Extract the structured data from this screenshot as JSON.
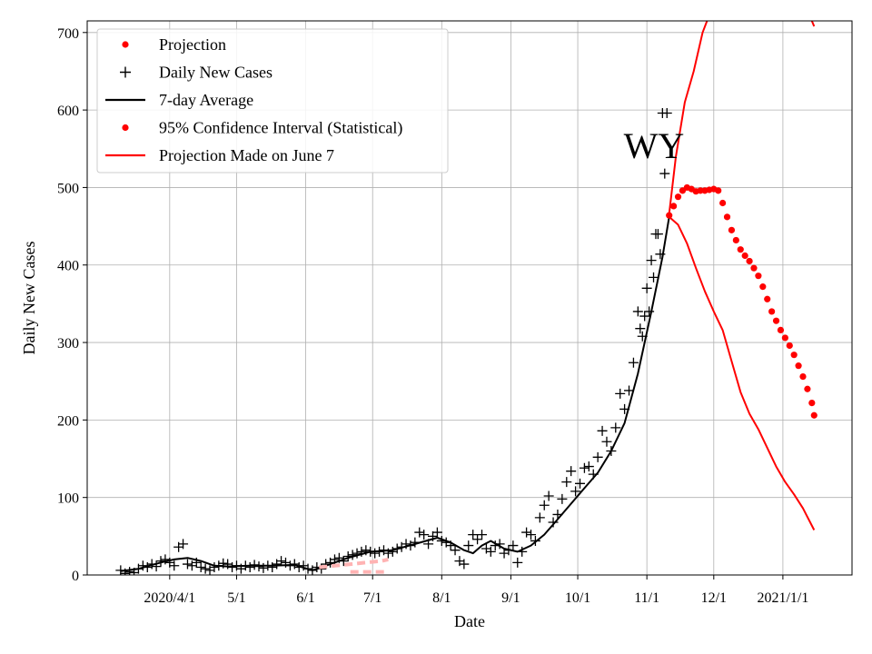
{
  "chart_data": {
    "type": "line",
    "title": "WY",
    "xlabel": "Date",
    "ylabel": "Daily New Cases",
    "xlim": [
      "2020-02-24",
      "2021-02-01"
    ],
    "ylim": [
      0,
      715
    ],
    "grid": true,
    "legend_position": "top-left",
    "x_ticks": [
      {
        "date": "2020-04-01",
        "label": "2020/4/1"
      },
      {
        "date": "2020-05-01",
        "label": "5/1"
      },
      {
        "date": "2020-06-01",
        "label": "6/1"
      },
      {
        "date": "2020-07-01",
        "label": "7/1"
      },
      {
        "date": "2020-08-01",
        "label": "8/1"
      },
      {
        "date": "2020-09-01",
        "label": "9/1"
      },
      {
        "date": "2020-10-01",
        "label": "10/1"
      },
      {
        "date": "2020-11-01",
        "label": "11/1"
      },
      {
        "date": "2020-12-01",
        "label": "12/1"
      },
      {
        "date": "2021-01-01",
        "label": "2021/1/1"
      }
    ],
    "y_ticks": [
      0,
      100,
      200,
      300,
      400,
      500,
      600,
      700
    ],
    "legend": [
      {
        "label": "Projection",
        "marker": "dot",
        "color": "#ff0000"
      },
      {
        "label": "Daily New Cases",
        "marker": "plus",
        "color": "#000000"
      },
      {
        "label": "7-day Average",
        "marker": "line",
        "color": "#000000"
      },
      {
        "label": "95% Confidence Interval (Statistical)",
        "marker": "dot",
        "color": "#ff0000"
      },
      {
        "label": "Projection Made on June 7",
        "marker": "line",
        "color": "#ff0000"
      }
    ],
    "series": [
      {
        "name": "Daily New Cases",
        "style": "plus",
        "color": "#000000",
        "points": [
          [
            "2020-03-10",
            6
          ],
          [
            "2020-03-12",
            2
          ],
          [
            "2020-03-14",
            4
          ],
          [
            "2020-03-16",
            3
          ],
          [
            "2020-03-18",
            8
          ],
          [
            "2020-03-20",
            12
          ],
          [
            "2020-03-22",
            10
          ],
          [
            "2020-03-24",
            14
          ],
          [
            "2020-03-26",
            11
          ],
          [
            "2020-03-28",
            18
          ],
          [
            "2020-03-30",
            20
          ],
          [
            "2020-04-01",
            16
          ],
          [
            "2020-04-03",
            12
          ],
          [
            "2020-04-05",
            36
          ],
          [
            "2020-04-07",
            40
          ],
          [
            "2020-04-09",
            14
          ],
          [
            "2020-04-11",
            12
          ],
          [
            "2020-04-13",
            16
          ],
          [
            "2020-04-15",
            10
          ],
          [
            "2020-04-17",
            8
          ],
          [
            "2020-04-19",
            6
          ],
          [
            "2020-04-21",
            10
          ],
          [
            "2020-04-23",
            12
          ],
          [
            "2020-04-25",
            15
          ],
          [
            "2020-04-27",
            14
          ],
          [
            "2020-04-29",
            10
          ],
          [
            "2020-05-01",
            12
          ],
          [
            "2020-05-03",
            8
          ],
          [
            "2020-05-05",
            12
          ],
          [
            "2020-05-07",
            10
          ],
          [
            "2020-05-09",
            13
          ],
          [
            "2020-05-11",
            11
          ],
          [
            "2020-05-13",
            9
          ],
          [
            "2020-05-15",
            12
          ],
          [
            "2020-05-17",
            10
          ],
          [
            "2020-05-19",
            14
          ],
          [
            "2020-05-21",
            18
          ],
          [
            "2020-05-23",
            16
          ],
          [
            "2020-05-25",
            12
          ],
          [
            "2020-05-27",
            14
          ],
          [
            "2020-05-29",
            10
          ],
          [
            "2020-05-31",
            12
          ],
          [
            "2020-06-02",
            8
          ],
          [
            "2020-06-04",
            6
          ],
          [
            "2020-06-06",
            10
          ],
          [
            "2020-06-08",
            8
          ],
          [
            "2020-06-10",
            14
          ],
          [
            "2020-06-12",
            16
          ],
          [
            "2020-06-14",
            20
          ],
          [
            "2020-06-16",
            22
          ],
          [
            "2020-06-18",
            18
          ],
          [
            "2020-06-20",
            24
          ],
          [
            "2020-06-22",
            26
          ],
          [
            "2020-06-24",
            28
          ],
          [
            "2020-06-26",
            30
          ],
          [
            "2020-06-28",
            32
          ],
          [
            "2020-06-30",
            30
          ],
          [
            "2020-07-02",
            28
          ],
          [
            "2020-07-04",
            30
          ],
          [
            "2020-07-06",
            32
          ],
          [
            "2020-07-08",
            28
          ],
          [
            "2020-07-10",
            30
          ],
          [
            "2020-07-12",
            34
          ],
          [
            "2020-07-14",
            36
          ],
          [
            "2020-07-16",
            40
          ],
          [
            "2020-07-18",
            38
          ],
          [
            "2020-07-20",
            42
          ],
          [
            "2020-07-22",
            55
          ],
          [
            "2020-07-24",
            52
          ],
          [
            "2020-07-26",
            40
          ],
          [
            "2020-07-28",
            50
          ],
          [
            "2020-07-30",
            55
          ],
          [
            "2020-08-01",
            44
          ],
          [
            "2020-08-03",
            42
          ],
          [
            "2020-08-05",
            38
          ],
          [
            "2020-08-07",
            32
          ],
          [
            "2020-08-09",
            18
          ],
          [
            "2020-08-11",
            14
          ],
          [
            "2020-08-13",
            38
          ],
          [
            "2020-08-15",
            52
          ],
          [
            "2020-08-17",
            46
          ],
          [
            "2020-08-19",
            52
          ],
          [
            "2020-08-21",
            34
          ],
          [
            "2020-08-23",
            30
          ],
          [
            "2020-08-25",
            38
          ],
          [
            "2020-08-27",
            40
          ],
          [
            "2020-08-29",
            28
          ],
          [
            "2020-08-31",
            32
          ],
          [
            "2020-09-02",
            38
          ],
          [
            "2020-09-04",
            16
          ],
          [
            "2020-09-06",
            30
          ],
          [
            "2020-09-08",
            55
          ],
          [
            "2020-09-10",
            52
          ],
          [
            "2020-09-12",
            44
          ],
          [
            "2020-09-14",
            74
          ],
          [
            "2020-09-16",
            90
          ],
          [
            "2020-09-18",
            102
          ],
          [
            "2020-09-20",
            68
          ],
          [
            "2020-09-22",
            78
          ],
          [
            "2020-09-24",
            98
          ],
          [
            "2020-09-26",
            120
          ],
          [
            "2020-09-28",
            134
          ],
          [
            "2020-09-30",
            108
          ],
          [
            "2020-10-02",
            118
          ],
          [
            "2020-10-04",
            138
          ],
          [
            "2020-10-06",
            140
          ],
          [
            "2020-10-08",
            130
          ],
          [
            "2020-10-10",
            152
          ],
          [
            "2020-10-12",
            186
          ],
          [
            "2020-10-14",
            172
          ],
          [
            "2020-10-16",
            160
          ],
          [
            "2020-10-18",
            190
          ],
          [
            "2020-10-20",
            234
          ],
          [
            "2020-10-22",
            214
          ],
          [
            "2020-10-24",
            238
          ],
          [
            "2020-10-26",
            274
          ],
          [
            "2020-10-28",
            340
          ],
          [
            "2020-10-29",
            318
          ],
          [
            "2020-10-30",
            308
          ],
          [
            "2020-10-31",
            334
          ],
          [
            "2020-11-01",
            370
          ],
          [
            "2020-11-02",
            340
          ],
          [
            "2020-11-03",
            406
          ],
          [
            "2020-11-04",
            384
          ],
          [
            "2020-11-05",
            440
          ],
          [
            "2020-11-06",
            440
          ],
          [
            "2020-11-07",
            414
          ],
          [
            "2020-11-08",
            596
          ],
          [
            "2020-11-09",
            518
          ],
          [
            "2020-11-10",
            596
          ]
        ]
      },
      {
        "name": "7-day Average",
        "style": "line",
        "color": "#000000",
        "points": [
          [
            "2020-03-10",
            5
          ],
          [
            "2020-03-18",
            8
          ],
          [
            "2020-03-28",
            16
          ],
          [
            "2020-04-03",
            20
          ],
          [
            "2020-04-09",
            22
          ],
          [
            "2020-04-15",
            18
          ],
          [
            "2020-04-21",
            12
          ],
          [
            "2020-04-27",
            11
          ],
          [
            "2020-05-07",
            12
          ],
          [
            "2020-05-17",
            12
          ],
          [
            "2020-05-27",
            13
          ],
          [
            "2020-06-04",
            6
          ],
          [
            "2020-06-10",
            12
          ],
          [
            "2020-06-20",
            22
          ],
          [
            "2020-06-30",
            30
          ],
          [
            "2020-07-10",
            32
          ],
          [
            "2020-07-20",
            40
          ],
          [
            "2020-07-30",
            48
          ],
          [
            "2020-08-05",
            42
          ],
          [
            "2020-08-11",
            32
          ],
          [
            "2020-08-15",
            28
          ],
          [
            "2020-08-19",
            38
          ],
          [
            "2020-08-23",
            44
          ],
          [
            "2020-08-29",
            34
          ],
          [
            "2020-09-04",
            30
          ],
          [
            "2020-09-10",
            38
          ],
          [
            "2020-09-16",
            52
          ],
          [
            "2020-09-22",
            72
          ],
          [
            "2020-09-28",
            92
          ],
          [
            "2020-10-04",
            112
          ],
          [
            "2020-10-10",
            132
          ],
          [
            "2020-10-16",
            160
          ],
          [
            "2020-10-22",
            196
          ],
          [
            "2020-10-28",
            260
          ],
          [
            "2020-11-03",
            340
          ],
          [
            "2020-11-08",
            410
          ],
          [
            "2020-11-11",
            462
          ]
        ]
      },
      {
        "name": "Projection",
        "style": "dot",
        "color": "#ff0000",
        "points": [
          [
            "2020-11-11",
            464
          ],
          [
            "2020-11-13",
            476
          ],
          [
            "2020-11-15",
            488
          ],
          [
            "2020-11-17",
            496
          ],
          [
            "2020-11-19",
            500
          ],
          [
            "2020-11-21",
            498
          ],
          [
            "2020-11-23",
            495
          ],
          [
            "2020-11-25",
            496
          ],
          [
            "2020-11-27",
            496
          ],
          [
            "2020-11-29",
            497
          ],
          [
            "2020-12-01",
            498
          ],
          [
            "2020-12-03",
            496
          ],
          [
            "2020-12-05",
            480
          ],
          [
            "2020-12-07",
            462
          ],
          [
            "2020-12-09",
            445
          ],
          [
            "2020-12-11",
            432
          ],
          [
            "2020-12-13",
            420
          ],
          [
            "2020-12-15",
            412
          ],
          [
            "2020-12-17",
            405
          ],
          [
            "2020-12-19",
            396
          ],
          [
            "2020-12-21",
            386
          ],
          [
            "2020-12-23",
            372
          ],
          [
            "2020-12-25",
            356
          ],
          [
            "2020-12-27",
            340
          ],
          [
            "2020-12-29",
            328
          ],
          [
            "2020-12-31",
            316
          ],
          [
            "2021-01-02",
            306
          ],
          [
            "2021-01-04",
            296
          ],
          [
            "2021-01-06",
            284
          ],
          [
            "2021-01-08",
            270
          ],
          [
            "2021-01-10",
            256
          ],
          [
            "2021-01-12",
            240
          ],
          [
            "2021-01-14",
            222
          ],
          [
            "2021-01-15",
            206
          ]
        ]
      },
      {
        "name": "95% Confidence Interval (Statistical) — upper",
        "style": "line",
        "color": "#ff0000",
        "points": [
          [
            "2020-11-11",
            466
          ],
          [
            "2020-11-14",
            540
          ],
          [
            "2020-11-18",
            610
          ],
          [
            "2020-11-22",
            650
          ],
          [
            "2020-11-26",
            700
          ],
          [
            "2020-11-28",
            715
          ]
        ]
      },
      {
        "name": "95% Confidence Interval (Statistical) — upper (tail)",
        "style": "line",
        "color": "#ff0000",
        "points": [
          [
            "2021-01-14",
            715
          ],
          [
            "2021-01-15",
            708
          ]
        ]
      },
      {
        "name": "95% Confidence Interval (Statistical) — lower",
        "style": "line",
        "color": "#ff0000",
        "points": [
          [
            "2020-11-11",
            462
          ],
          [
            "2020-11-15",
            452
          ],
          [
            "2020-11-19",
            428
          ],
          [
            "2020-11-23",
            396
          ],
          [
            "2020-11-27",
            366
          ],
          [
            "2020-12-01",
            340
          ],
          [
            "2020-12-05",
            316
          ],
          [
            "2020-12-09",
            276
          ],
          [
            "2020-12-13",
            236
          ],
          [
            "2020-12-17",
            208
          ],
          [
            "2020-12-21",
            188
          ],
          [
            "2020-12-25",
            164
          ],
          [
            "2020-12-29",
            140
          ],
          [
            "2021-01-02",
            120
          ],
          [
            "2021-01-06",
            104
          ],
          [
            "2021-01-10",
            86
          ],
          [
            "2021-01-15",
            58
          ]
        ]
      },
      {
        "name": "Projection Made on June 7",
        "style": "dashed",
        "color": "#ffb3b3",
        "points": [
          [
            "2020-06-07",
            10
          ],
          [
            "2020-06-14",
            12
          ],
          [
            "2020-06-21",
            14
          ],
          [
            "2020-06-28",
            16
          ],
          [
            "2020-07-05",
            18
          ],
          [
            "2020-07-08",
            20
          ]
        ]
      },
      {
        "name": "Projection Made on June 7 — lower",
        "style": "dashed",
        "color": "#ffb3b3",
        "points": [
          [
            "2020-06-21",
            4
          ],
          [
            "2020-07-08",
            4
          ]
        ]
      }
    ]
  }
}
